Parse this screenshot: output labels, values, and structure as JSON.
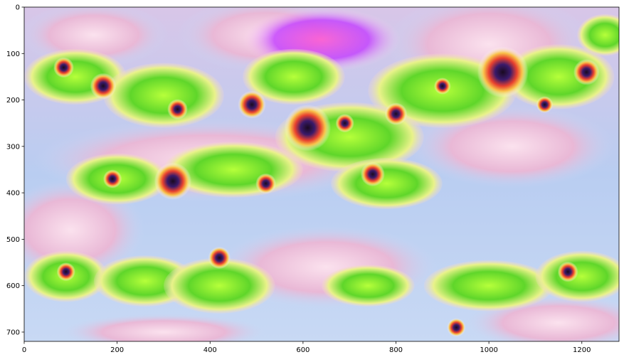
{
  "chart_data": {
    "type": "image",
    "title": "",
    "xlabel": "",
    "ylabel": "",
    "image_content": "psychedelic DeepDream-style image of green frog-like heads with colorful eyes on pale blue/pink background",
    "image_width": 1280,
    "image_height": 720,
    "xlim": [
      0,
      1280
    ],
    "ylim": [
      720,
      0
    ],
    "xticks": [
      0,
      200,
      400,
      600,
      800,
      1000,
      1200
    ],
    "yticks": [
      0,
      100,
      200,
      300,
      400,
      500,
      600,
      700
    ],
    "grid": false
  }
}
